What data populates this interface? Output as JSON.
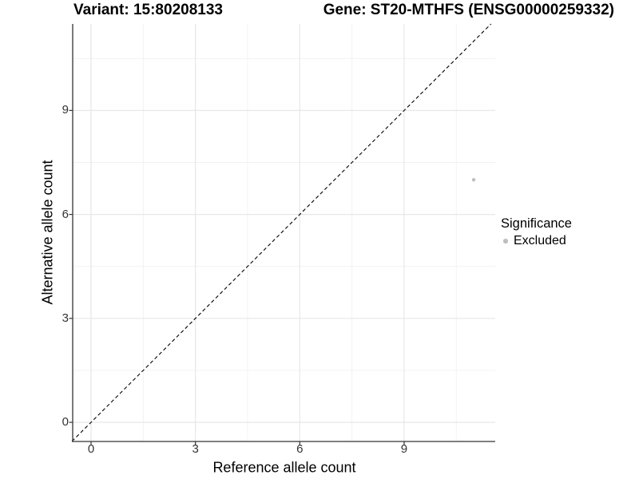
{
  "titles": {
    "left": "Variant: 15:80208133",
    "right": "Gene: ST20-MTHFS (ENSG00000259332)"
  },
  "axes": {
    "x": {
      "label": "Reference allele count",
      "tick_labels": [
        "0",
        "3",
        "6",
        "9"
      ]
    },
    "y": {
      "label": "Alternative allele count",
      "tick_labels": [
        "0",
        "3",
        "6",
        "9"
      ]
    }
  },
  "legend": {
    "title": "Significance",
    "items": [
      {
        "label": "Excluded",
        "color": "#bebebe"
      }
    ]
  },
  "colors": {
    "background": "#ffffff",
    "grid_major": "#e7e7e7",
    "grid_minor": "#f1f1f1",
    "axis_line": "#333333",
    "tick_mark": "#333333",
    "tick_text": "#333333",
    "reference_line": "#000000",
    "point": "#bebebe"
  },
  "chart_data": {
    "type": "scatter",
    "title": "Variant: 15:80208133 | Gene: ST20-MTHFS (ENSG00000259332)",
    "xlabel": "Reference allele count",
    "ylabel": "Alternative allele count",
    "xlim": [
      -0.55,
      11.55
    ],
    "ylim": [
      -0.55,
      11.5
    ],
    "x_ticks": [
      0,
      3,
      6,
      9
    ],
    "y_ticks": [
      0,
      3,
      6,
      9
    ],
    "x_minor_ticks": [
      1.5,
      4.5,
      7.5,
      10.5
    ],
    "y_minor_ticks": [
      1.5,
      4.5,
      7.5,
      10.5
    ],
    "grid": "major and minor, light gray, on white panel",
    "legend_position": "right",
    "series": [
      {
        "name": "Excluded",
        "color": "#bebebe",
        "marker": "circle",
        "points": [
          {
            "x": 11,
            "y": 7
          }
        ]
      }
    ],
    "reference_line": {
      "kind": "identity y=x",
      "style": "dashed",
      "color": "#000000"
    }
  }
}
